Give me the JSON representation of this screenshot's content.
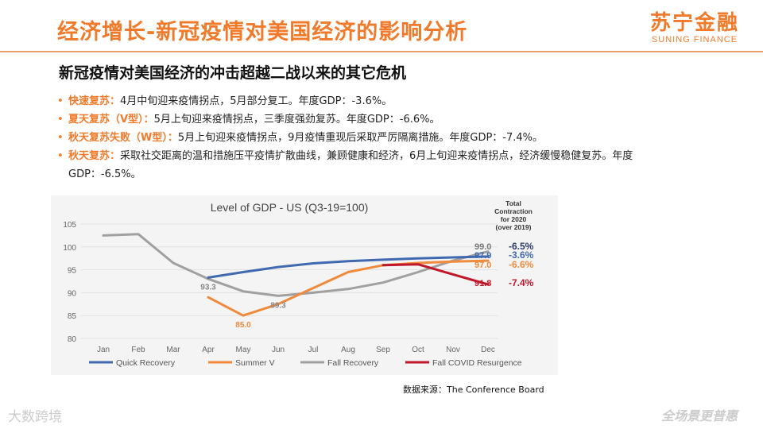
{
  "header": {
    "title": "经济增长-新冠疫情对美国经济的影响分析",
    "logo_cn": "苏宁金融",
    "logo_en": "SUNING FINANCE"
  },
  "subtitle": "新冠疫情对美国经济的冲击超越二战以来的其它危机",
  "bullets": [
    {
      "label": "快速复苏：",
      "text": "4月中旬迎来疫情拐点，5月部分复工。年度GDP：-3.6%。"
    },
    {
      "label": "夏天复苏（V型）：",
      "text": "5月上旬迎来疫情拐点，三季度强劲复苏。年度GDP：-6.6%。"
    },
    {
      "label": "秋天复苏失败（W型）：",
      "text": "5月上旬迎来疫情拐点，9月疫情重现后采取严厉隔离措施。年度GDP：-7.4%。"
    },
    {
      "label": "秋天复苏：",
      "text": "采取社交距离的温和措施压平疫情扩散曲线，兼顾健康和经济，6月上旬迎来疫情拐点，经济缓慢稳健复苏。年度GDP：-6.5%。"
    }
  ],
  "chart_data": {
    "type": "line",
    "title": "Level of GDP - US (Q3-19=100)",
    "categories": [
      "Jan",
      "Feb",
      "Mar",
      "Apr",
      "May",
      "Jun",
      "Jul",
      "Aug",
      "Sep",
      "Oct",
      "Nov",
      "Dec"
    ],
    "yticks": [
      "80",
      "85",
      "90",
      "95",
      "100",
      "105"
    ],
    "ylim": [
      80,
      105
    ],
    "series": [
      {
        "name": "Quick Recovery",
        "color": "#4169b0",
        "values": [
          null,
          null,
          null,
          93.3,
          94.5,
          95.6,
          96.4,
          96.9,
          97.2,
          97.5,
          97.7,
          97.9
        ]
      },
      {
        "name": "Summer V",
        "color": "#f08a3c",
        "values": [
          null,
          null,
          null,
          89.0,
          85.0,
          87.5,
          91.0,
          94.5,
          96.0,
          96.5,
          96.8,
          97.0
        ]
      },
      {
        "name": "Fall Recovery",
        "color": "#a0a0a0",
        "values": [
          102.5,
          102.8,
          96.5,
          93.0,
          90.3,
          89.3,
          90.0,
          90.8,
          92.2,
          94.5,
          97.0,
          99.0
        ]
      },
      {
        "name": "Fall COVID Resurgence",
        "color": "#c0182a",
        "values": [
          null,
          null,
          null,
          null,
          null,
          null,
          null,
          null,
          96.0,
          96.2,
          94.0,
          91.8
        ]
      }
    ],
    "point_labels": [
      {
        "text": "93.3",
        "series": 0,
        "index": 3
      },
      {
        "text": "85.0",
        "series": 1,
        "index": 4
      },
      {
        "text": "89.3",
        "series": 2,
        "index": 5
      }
    ],
    "end_labels": [
      {
        "value": "99.0",
        "contraction": "-6.5%",
        "color": "#777777",
        "ccolor": "#2c3a6b"
      },
      {
        "value": "97.9",
        "contraction": "-3.6%",
        "color": "#4169b0",
        "ccolor": "#4169b0"
      },
      {
        "value": "97.0",
        "contraction": "-6.6%",
        "color": "#f08a3c",
        "ccolor": "#f08a3c"
      },
      {
        "value": "91.8",
        "contraction": "-7.4%",
        "color": "#c0182a",
        "ccolor": "#c0182a"
      }
    ],
    "contraction_header": [
      "Total",
      "Contraction",
      "for 2020",
      "(over 2019)"
    ]
  },
  "source": "数据来源：The Conference Board",
  "watermark_left": "大数跨境",
  "watermark_right": "全场景更普惠"
}
